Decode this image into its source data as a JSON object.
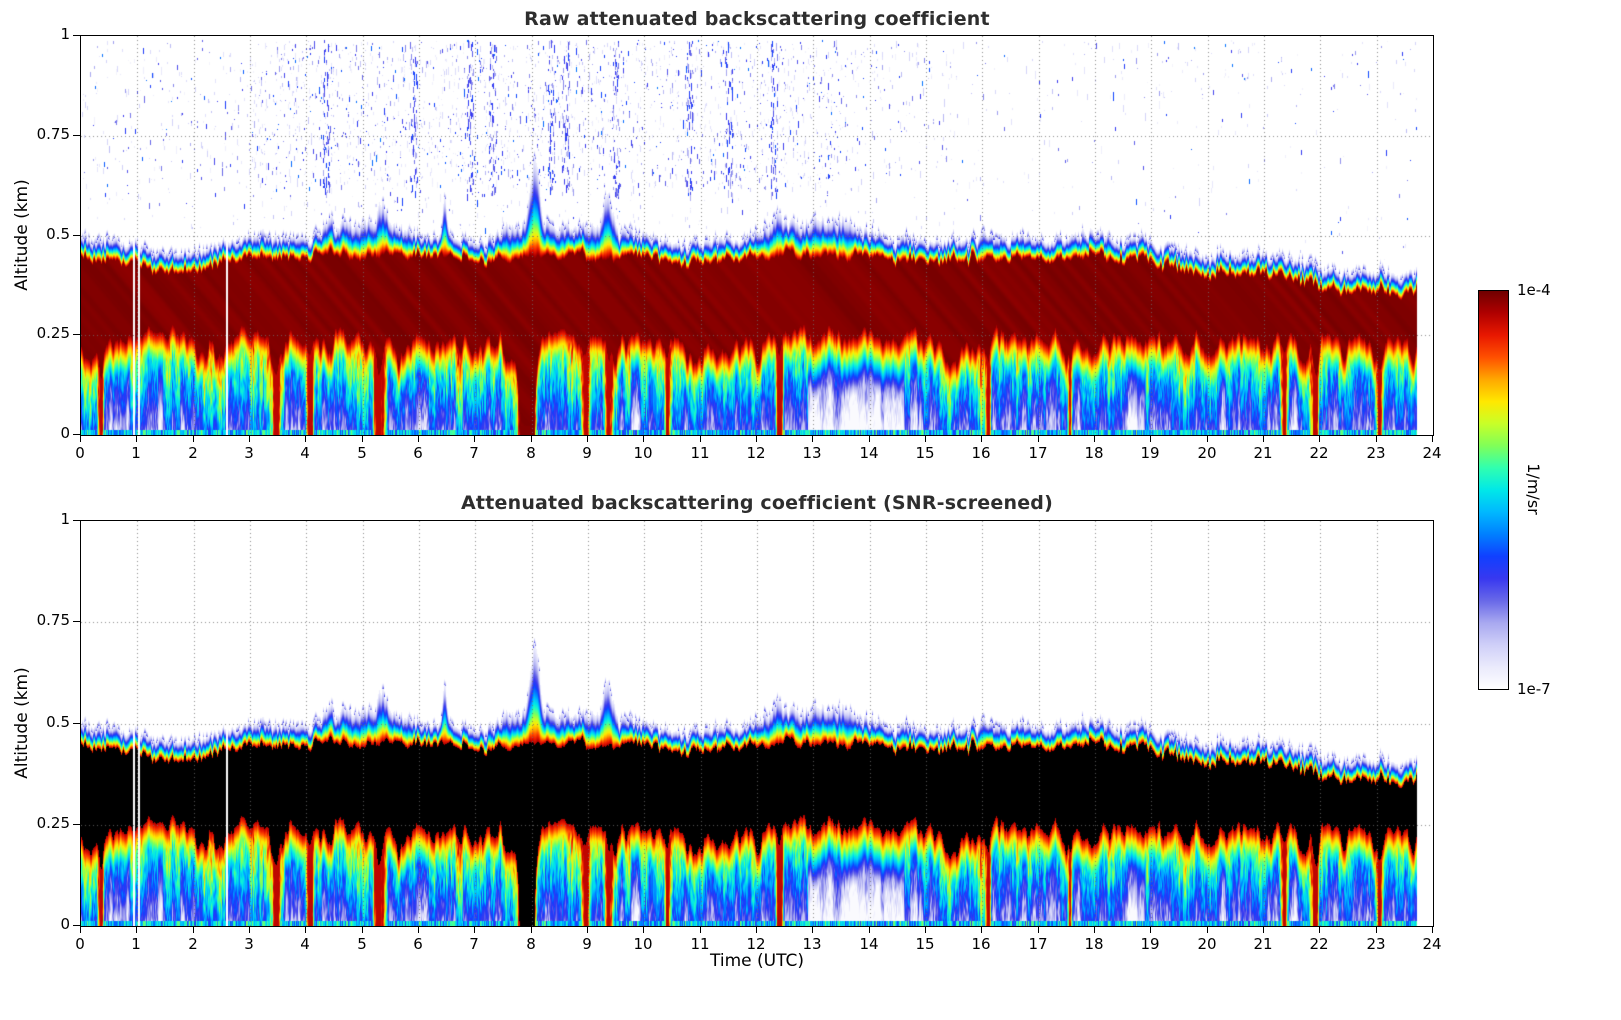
{
  "colorbar": {
    "unit_label": "1/m/sr",
    "max_label": "1e-4",
    "min_label": "1e-7",
    "scale": "log",
    "colors": [
      "#ffffff",
      "#eaeafc",
      "#cfcff8",
      "#a8a8f0",
      "#6868e8",
      "#3838f0",
      "#1040ff",
      "#0080ff",
      "#00b8ff",
      "#00e8e8",
      "#30ffb0",
      "#80ff58",
      "#c8ff28",
      "#ffe800",
      "#ffa800",
      "#ff5000",
      "#e81800",
      "#b00000",
      "#700000"
    ]
  },
  "chart_data": [
    {
      "type": "heatmap",
      "title": "Raw attenuated backscattering coefficient",
      "xlabel": "",
      "ylabel": "Altitude (km)",
      "xlim": [
        0,
        24
      ],
      "ylim": [
        0,
        1
      ],
      "xticks": [
        0,
        1,
        2,
        3,
        4,
        5,
        6,
        7,
        8,
        9,
        10,
        11,
        12,
        13,
        14,
        15,
        16,
        17,
        18,
        19,
        20,
        21,
        22,
        23,
        24
      ],
      "yticks": [
        0,
        0.25,
        0.5,
        0.75,
        1
      ],
      "grid": "dotted",
      "time_end": 23.7,
      "color_scale": {
        "scale": "log",
        "min": "1e-7",
        "max": "1e-4",
        "unit": "1/m/sr"
      },
      "noise_speckles": true,
      "saturated_black": false,
      "layer_top_km_hourly": [
        0.5,
        0.47,
        0.46,
        0.5,
        0.5,
        0.54,
        0.5,
        0.49,
        0.53,
        0.52,
        0.5,
        0.48,
        0.51,
        0.54,
        0.51,
        0.48,
        0.5,
        0.5,
        0.5,
        0.48,
        0.45,
        0.46,
        0.42,
        0.4,
        0.41
      ],
      "core_top_km_typical": 0.44,
      "core_bottom_km_typical": 0.25,
      "events": {
        "plumes": [
          {
            "t": 8.05,
            "dh": 0.18,
            "w": 0.1
          },
          {
            "t": 9.35,
            "dh": 0.09,
            "w": 0.1
          },
          {
            "t": 6.45,
            "dh": 0.1,
            "w": 0.05
          },
          {
            "t": 5.35,
            "dh": 0.05,
            "w": 0.12
          },
          {
            "t": 12.35,
            "dh": 0.05,
            "w": 0.1
          },
          {
            "t": 4.4,
            "dh": 0.04,
            "w": 0.08
          }
        ],
        "gaps": [
          0.93,
          1.02,
          2.58
        ],
        "strong_streaks": [
          {
            "t": 0.35,
            "w": 0.05,
            "sat": false
          },
          {
            "t": 3.45,
            "w": 0.07,
            "sat": false
          },
          {
            "t": 4.05,
            "w": 0.06,
            "sat": false
          },
          {
            "t": 5.3,
            "w": 0.1,
            "sat": false
          },
          {
            "t": 7.85,
            "w": 0.1,
            "sat": true
          },
          {
            "t": 8.0,
            "w": 0.06,
            "sat": true
          },
          {
            "t": 8.95,
            "w": 0.07,
            "sat": false
          },
          {
            "t": 9.35,
            "w": 0.06,
            "sat": false
          },
          {
            "t": 10.4,
            "w": 0.05,
            "sat": false
          },
          {
            "t": 12.4,
            "w": 0.05,
            "sat": false
          },
          {
            "t": 16.1,
            "w": 0.05,
            "sat": false
          },
          {
            "t": 17.55,
            "w": 0.04,
            "sat": false
          },
          {
            "t": 21.35,
            "w": 0.06,
            "sat": false
          },
          {
            "t": 21.9,
            "w": 0.06,
            "sat": false
          },
          {
            "t": 23.05,
            "w": 0.05,
            "sat": false
          }
        ],
        "weak_patch": {
          "t0": 12.9,
          "t1": 14.6
        },
        "noise_columns": [
          4.35,
          5.9,
          6.9,
          7.3,
          8.35,
          8.6,
          9.5,
          10.8,
          11.5,
          12.3
        ]
      }
    },
    {
      "type": "heatmap",
      "title": "Attenuated backscattering coefficient (SNR-screened)",
      "xlabel": "Time (UTC)",
      "ylabel": "Altitude (km)",
      "xlim": [
        0,
        24
      ],
      "ylim": [
        0,
        1
      ],
      "xticks": [
        0,
        1,
        2,
        3,
        4,
        5,
        6,
        7,
        8,
        9,
        10,
        11,
        12,
        13,
        14,
        15,
        16,
        17,
        18,
        19,
        20,
        21,
        22,
        23,
        24
      ],
      "yticks": [
        0,
        0.25,
        0.5,
        0.75,
        1
      ],
      "grid": "dotted",
      "time_end": 23.7,
      "color_scale": {
        "scale": "log",
        "min": "1e-7",
        "max": "1e-4",
        "unit": "1/m/sr"
      },
      "noise_speckles": false,
      "saturated_black": true,
      "layer_top_km_hourly": [
        0.5,
        0.47,
        0.46,
        0.5,
        0.5,
        0.54,
        0.5,
        0.49,
        0.53,
        0.52,
        0.5,
        0.48,
        0.51,
        0.54,
        0.51,
        0.48,
        0.5,
        0.5,
        0.5,
        0.48,
        0.45,
        0.46,
        0.42,
        0.4,
        0.41
      ],
      "core_top_km_typical": 0.44,
      "core_bottom_km_typical": 0.25,
      "events": {
        "plumes": [
          {
            "t": 8.05,
            "dh": 0.18,
            "w": 0.1
          },
          {
            "t": 9.35,
            "dh": 0.09,
            "w": 0.1
          },
          {
            "t": 6.45,
            "dh": 0.1,
            "w": 0.05
          },
          {
            "t": 5.35,
            "dh": 0.05,
            "w": 0.12
          },
          {
            "t": 12.35,
            "dh": 0.05,
            "w": 0.1
          },
          {
            "t": 4.4,
            "dh": 0.04,
            "w": 0.08
          }
        ],
        "gaps": [
          0.93,
          1.02,
          2.58
        ],
        "strong_streaks": [
          {
            "t": 0.35,
            "w": 0.05,
            "sat": false
          },
          {
            "t": 3.45,
            "w": 0.07,
            "sat": false
          },
          {
            "t": 4.05,
            "w": 0.06,
            "sat": false
          },
          {
            "t": 5.3,
            "w": 0.1,
            "sat": false
          },
          {
            "t": 7.85,
            "w": 0.1,
            "sat": true
          },
          {
            "t": 8.0,
            "w": 0.06,
            "sat": true
          },
          {
            "t": 8.95,
            "w": 0.07,
            "sat": false
          },
          {
            "t": 9.35,
            "w": 0.06,
            "sat": false
          },
          {
            "t": 10.4,
            "w": 0.05,
            "sat": false
          },
          {
            "t": 12.4,
            "w": 0.05,
            "sat": false
          },
          {
            "t": 16.1,
            "w": 0.05,
            "sat": false
          },
          {
            "t": 17.55,
            "w": 0.04,
            "sat": false
          },
          {
            "t": 21.35,
            "w": 0.06,
            "sat": false
          },
          {
            "t": 21.9,
            "w": 0.06,
            "sat": false
          },
          {
            "t": 23.05,
            "w": 0.05,
            "sat": false
          }
        ],
        "weak_patch": {
          "t0": 12.9,
          "t1": 14.6
        },
        "noise_columns": []
      }
    }
  ]
}
